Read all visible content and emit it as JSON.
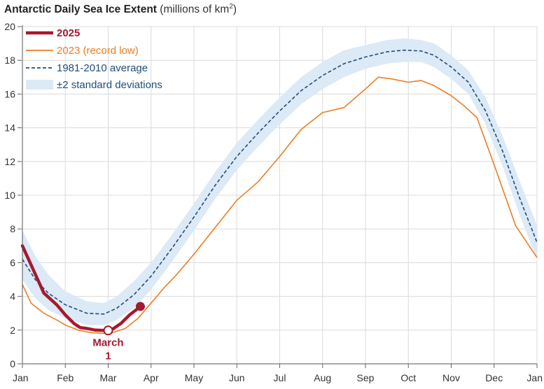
{
  "title": {
    "bold": "Antarctic Daily Sea Ice Extent",
    "unit_prefix": "(millions of km",
    "unit_sup": "2",
    "unit_suffix": ")"
  },
  "chart_data": {
    "type": "line",
    "title": "Antarctic Daily Sea Ice Extent (millions of km²)",
    "xlabel": "",
    "ylabel": "",
    "x_ticks": [
      "Jan",
      "Feb",
      "Mar",
      "Apr",
      "May",
      "Jun",
      "Jul",
      "Aug",
      "Sep",
      "Oct",
      "Nov",
      "Dec",
      "Jan"
    ],
    "x_unit": "month (0 = Jan 1, 12 = next Jan 1)",
    "xlim": [
      0,
      12
    ],
    "ylim": [
      0,
      20
    ],
    "y_ticks": [
      0,
      2,
      4,
      6,
      8,
      10,
      12,
      14,
      16,
      18,
      20
    ],
    "grid": true,
    "legend_position": "top-left",
    "colors": {
      "s2025": "#a6192e",
      "s2023": "#ed7d22",
      "average": "#1f4e79",
      "band": "#dce9f6"
    },
    "series": [
      {
        "name": "2025",
        "style": "thick solid",
        "x": [
          0,
          0.25,
          0.5,
          0.8,
          1.0,
          1.2,
          1.35,
          1.5,
          1.7,
          1.9,
          2.1,
          2.3,
          2.5,
          2.7,
          2.75
        ],
        "y": [
          7.0,
          5.6,
          4.2,
          3.5,
          2.9,
          2.4,
          2.15,
          2.1,
          2.0,
          1.98,
          2.05,
          2.4,
          2.9,
          3.3,
          3.4
        ]
      },
      {
        "name": "2023 (record low)",
        "style": "thin solid",
        "x": [
          0,
          0.2,
          0.5,
          0.8,
          1.0,
          1.3,
          1.6,
          1.9,
          2.1,
          2.4,
          2.7,
          3.0,
          3.3,
          3.6,
          4.0,
          4.5,
          5.0,
          5.5,
          6.0,
          6.5,
          7.0,
          7.5,
          8.0,
          8.3,
          8.6,
          9.0,
          9.3,
          9.6,
          10.0,
          10.3,
          10.6,
          11.0,
          11.5,
          12.0
        ],
        "y": [
          4.7,
          3.6,
          3.0,
          2.6,
          2.3,
          2.0,
          1.85,
          1.8,
          1.85,
          2.1,
          2.7,
          3.6,
          4.5,
          5.3,
          6.5,
          8.1,
          9.7,
          10.8,
          12.3,
          13.9,
          14.9,
          15.2,
          16.3,
          17.0,
          16.9,
          16.7,
          16.8,
          16.5,
          15.9,
          15.3,
          14.6,
          11.8,
          8.2,
          6.3
        ]
      },
      {
        "name": "1981-2010 average",
        "style": "dashed",
        "x": [
          0,
          0.3,
          0.6,
          1.0,
          1.5,
          1.9,
          2.2,
          2.6,
          3.0,
          3.5,
          4.0,
          4.5,
          5.0,
          5.5,
          6.0,
          6.5,
          7.0,
          7.5,
          8.0,
          8.5,
          8.9,
          9.3,
          9.6,
          10.0,
          10.4,
          10.8,
          11.2,
          11.6,
          12.0
        ],
        "y": [
          6.2,
          5.0,
          4.2,
          3.5,
          3.0,
          2.95,
          3.3,
          4.1,
          5.2,
          6.9,
          8.7,
          10.6,
          12.3,
          13.7,
          15.0,
          16.2,
          17.1,
          17.8,
          18.2,
          18.5,
          18.6,
          18.55,
          18.3,
          17.6,
          16.7,
          15.0,
          12.6,
          9.8,
          7.2
        ]
      },
      {
        "name": "±2 standard deviations",
        "style": "band",
        "x": [
          0,
          0.3,
          0.6,
          1.0,
          1.5,
          1.9,
          2.2,
          2.6,
          3.0,
          3.5,
          4.0,
          4.5,
          5.0,
          5.5,
          6.0,
          6.5,
          7.0,
          7.5,
          8.0,
          8.5,
          8.9,
          9.3,
          9.6,
          10.0,
          10.4,
          10.8,
          11.2,
          11.6,
          12.0
        ],
        "upper": [
          7.9,
          6.4,
          5.3,
          4.3,
          3.7,
          3.6,
          4.0,
          4.9,
          6.0,
          7.7,
          9.5,
          11.4,
          13.1,
          14.5,
          15.8,
          17.0,
          17.9,
          18.6,
          18.9,
          19.2,
          19.3,
          19.2,
          19.0,
          18.3,
          17.4,
          15.8,
          13.5,
          10.8,
          8.2
        ],
        "lower": [
          5.0,
          3.9,
          3.2,
          2.7,
          2.3,
          2.3,
          2.6,
          3.3,
          4.4,
          6.1,
          7.9,
          9.8,
          11.5,
          12.9,
          14.2,
          15.4,
          16.3,
          17.0,
          17.5,
          17.8,
          17.9,
          17.9,
          17.6,
          16.9,
          16.0,
          14.2,
          11.7,
          8.8,
          6.2
        ]
      }
    ],
    "markers": [
      {
        "x": 2.0,
        "y": 1.98,
        "style": "hollow-circle",
        "label_line1": "March",
        "label_line2": "1"
      },
      {
        "x": 2.75,
        "y": 3.4,
        "style": "filled-circle"
      }
    ],
    "legend": [
      {
        "key": "s2025",
        "label": "2025",
        "bold": true
      },
      {
        "key": "s2023",
        "label": "2023 (record low)",
        "bold": false
      },
      {
        "key": "average",
        "label": "1981-2010 average",
        "bold": false
      },
      {
        "key": "band",
        "label": "±2 standard deviations",
        "bold": false
      }
    ]
  }
}
